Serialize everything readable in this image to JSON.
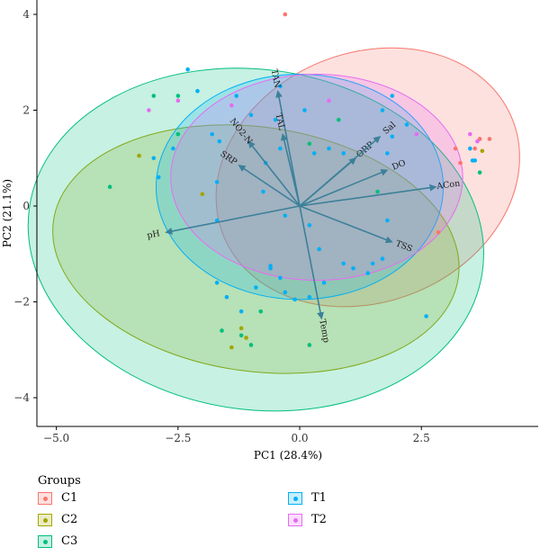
{
  "chart_data": {
    "type": "scatter",
    "subtype": "pca-biplot",
    "xlabel": "PC1 (28.4%)",
    "ylabel": "PC2 (21.1%)",
    "xlim": [
      -5.4,
      4.9
    ],
    "ylim": [
      -4.6,
      4.3
    ],
    "xticks": [
      -5.0,
      -2.5,
      0.0,
      2.5
    ],
    "xtick_labels": [
      "−5.0",
      "−2.5",
      "0.0",
      "2.5"
    ],
    "yticks": [
      -4,
      -2,
      0,
      2,
      4
    ],
    "ytick_labels": [
      "−4",
      "−2",
      "0",
      "2",
      "4"
    ],
    "grid": false,
    "legend_title": "Groups",
    "legend_position": "bottom",
    "groups": [
      {
        "name": "C1",
        "color": "#F8766D",
        "fill": "#F8766D",
        "ellipse": {
          "cx": 1.4,
          "cy": 0.6,
          "rx": 3.2,
          "ry": 2.6,
          "angle": -22
        },
        "points": [
          [
            -0.3,
            4.0
          ],
          [
            3.7,
            1.4
          ],
          [
            3.9,
            1.4
          ],
          [
            3.3,
            0.9
          ],
          [
            3.6,
            1.2
          ],
          [
            2.85,
            -0.55
          ],
          [
            3.2,
            1.2
          ]
        ]
      },
      {
        "name": "C2",
        "color": "#A3A500",
        "fill": "#A3A500",
        "ellipse": {
          "cx": -0.9,
          "cy": -0.9,
          "rx": 4.2,
          "ry": 2.55,
          "angle": 8
        },
        "points": [
          [
            -3.3,
            1.05
          ],
          [
            -1.1,
            -2.75
          ],
          [
            -1.2,
            -2.55
          ],
          [
            -1.4,
            -2.95
          ],
          [
            -2.0,
            0.25
          ],
          [
            3.75,
            1.15
          ]
        ]
      },
      {
        "name": "C3",
        "color": "#00BF7D",
        "fill": "#00BF7D",
        "ellipse": {
          "cx": -0.9,
          "cy": -0.7,
          "rx": 4.7,
          "ry": 3.55,
          "angle": 8
        },
        "points": [
          [
            -3.9,
            0.4
          ],
          [
            -3.0,
            2.3
          ],
          [
            -1.6,
            -2.6
          ],
          [
            -1.0,
            -2.9
          ],
          [
            -1.2,
            -2.7
          ],
          [
            0.2,
            -2.9
          ],
          [
            1.6,
            0.3
          ],
          [
            0.2,
            1.3
          ],
          [
            -0.8,
            -2.2
          ],
          [
            3.7,
            0.7
          ],
          [
            0.8,
            1.8
          ],
          [
            -2.5,
            1.5
          ],
          [
            -2.5,
            2.3
          ]
        ]
      },
      {
        "name": "T1",
        "color": "#00B0F6",
        "fill": "#00B0F6",
        "ellipse": {
          "cx": 0.0,
          "cy": 0.4,
          "rx": 2.95,
          "ry": 2.35,
          "angle": 0
        },
        "points": [
          [
            -2.3,
            2.85
          ],
          [
            -2.1,
            2.4
          ],
          [
            -1.8,
            1.5
          ],
          [
            -1.3,
            2.3
          ],
          [
            -1.65,
            1.35
          ],
          [
            -1.0,
            1.9
          ],
          [
            -0.4,
            1.2
          ],
          [
            -2.6,
            1.2
          ],
          [
            -3.0,
            1.0
          ],
          [
            -1.7,
            0.5
          ],
          [
            -2.9,
            0.6
          ],
          [
            -1.7,
            -0.3
          ],
          [
            -0.3,
            -0.2
          ],
          [
            0.2,
            -0.4
          ],
          [
            1.8,
            -0.3
          ],
          [
            0.4,
            -0.9
          ],
          [
            -0.6,
            -1.3
          ],
          [
            -0.4,
            -1.5
          ],
          [
            -0.9,
            -1.7
          ],
          [
            -1.5,
            -1.9
          ],
          [
            -1.2,
            -2.2
          ],
          [
            -0.3,
            -1.8
          ],
          [
            0.2,
            -1.9
          ],
          [
            0.5,
            -1.6
          ],
          [
            1.5,
            -1.2
          ],
          [
            1.7,
            -1.1
          ],
          [
            1.4,
            -1.4
          ],
          [
            2.6,
            -2.3
          ],
          [
            1.1,
            -1.3
          ],
          [
            1.9,
            2.3
          ],
          [
            2.2,
            1.7
          ],
          [
            1.9,
            1.45
          ],
          [
            1.8,
            1.1
          ],
          [
            0.1,
            2.0
          ],
          [
            0.3,
            1.1
          ],
          [
            1.7,
            2.0
          ],
          [
            -0.6,
            -1.25
          ],
          [
            -0.7,
            0.9
          ],
          [
            -0.5,
            1.8
          ],
          [
            -0.4,
            2.5
          ],
          [
            0.6,
            1.2
          ],
          [
            0.9,
            1.1
          ],
          [
            0.9,
            -1.2
          ],
          [
            -0.1,
            -1.95
          ],
          [
            -1.7,
            -1.6
          ],
          [
            3.5,
            1.2
          ],
          [
            3.55,
            0.95
          ],
          [
            3.6,
            0.95
          ],
          [
            -0.75,
            0.3
          ]
        ]
      },
      {
        "name": "T2",
        "color": "#E76BF3",
        "fill": "#E76BF3",
        "ellipse": {
          "cx": 0.35,
          "cy": 0.6,
          "rx": 3.0,
          "ry": 2.15,
          "angle": 0
        },
        "points": [
          [
            -3.1,
            2.0
          ],
          [
            -2.5,
            2.2
          ],
          [
            -1.4,
            2.1
          ],
          [
            0.6,
            2.2
          ],
          [
            3.5,
            1.5
          ],
          [
            3.65,
            1.35
          ],
          [
            2.4,
            1.5
          ]
        ]
      }
    ],
    "loadings": [
      {
        "name": "TAN",
        "x": -0.45,
        "y": 2.4
      },
      {
        "name": "TAL",
        "x": -0.35,
        "y": 1.5
      },
      {
        "name": "NO2-N",
        "x": -1.05,
        "y": 1.35
      },
      {
        "name": "SRP",
        "x": -1.25,
        "y": 0.85
      },
      {
        "name": "ORP",
        "x": 1.15,
        "y": 1.0
      },
      {
        "name": "Sal",
        "x": 1.65,
        "y": 1.45
      },
      {
        "name": "DO",
        "x": 1.8,
        "y": 0.75
      },
      {
        "name": "ACon",
        "x": 2.8,
        "y": 0.4
      },
      {
        "name": "TSS",
        "x": 1.9,
        "y": -0.75
      },
      {
        "name": "Temp",
        "x": 0.45,
        "y": -2.35
      },
      {
        "name": "pH",
        "x": -2.75,
        "y": -0.55
      }
    ],
    "arrow_color": "#3C8099"
  }
}
